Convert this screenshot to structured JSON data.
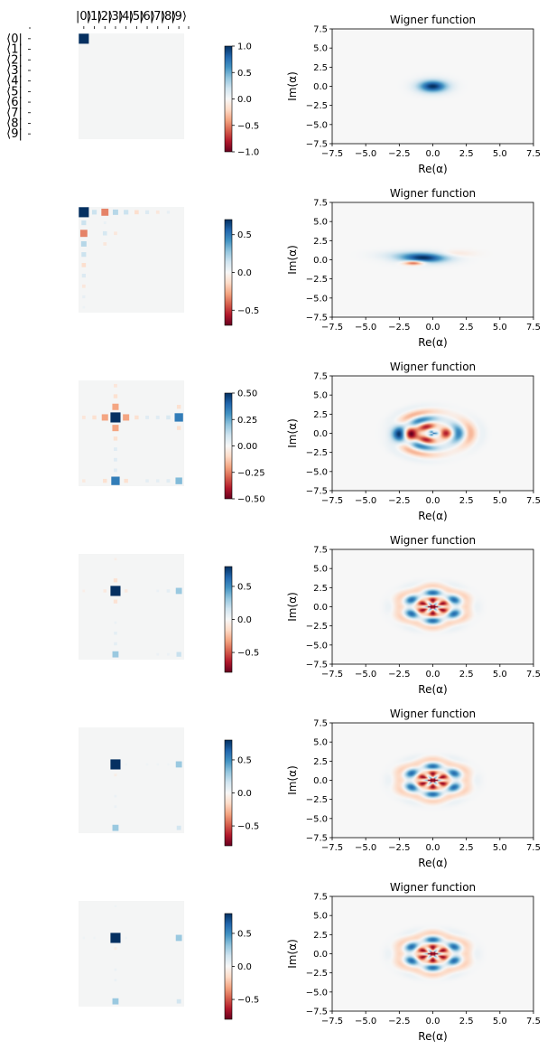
{
  "colors": {
    "cmap": [
      "#67001f",
      "#b2182b",
      "#d6604d",
      "#f4a582",
      "#fddbc7",
      "#f7f7f7",
      "#d1e5f0",
      "#92c5de",
      "#4393c3",
      "#2166ac",
      "#053061"
    ],
    "background": "#ffffff",
    "axis": "#000000"
  },
  "matrix_labels": {
    "kets": [
      "|0⟩",
      "|1⟩",
      "|2⟩",
      "|3⟩",
      "|4⟩",
      "|5⟩",
      "|6⟩",
      "|7⟩",
      "|8⟩",
      "|9⟩"
    ],
    "bras": [
      "⟨0|",
      "⟨1|",
      "⟨2|",
      "⟨3|",
      "⟨4|",
      "⟨5|",
      "⟨6|",
      "⟨7|",
      "⟨8|",
      "⟨9|"
    ]
  },
  "chart_data": [
    {
      "type": "hinton",
      "row": 0,
      "size": 10,
      "entries": [
        [
          0,
          0,
          1.0
        ]
      ],
      "colorbar": {
        "vmin": -1.0,
        "vmax": 1.0,
        "ticks": [
          1.0,
          0.5,
          0.0,
          -0.5,
          -1.0
        ],
        "tick_labels": [
          "1.0",
          "0.5",
          "0.0",
          "−0.5",
          "−1.0"
        ]
      }
    },
    {
      "type": "heatmap",
      "row": 0,
      "title": "Wigner function",
      "xlabel": "Re(α)",
      "ylabel": "Im(α)",
      "xlim": [
        -7.5,
        7.5
      ],
      "ylim": [
        -7.5,
        7.5
      ],
      "ticks": [
        7.5,
        5.0,
        2.5,
        0.0,
        -2.5,
        -5.0,
        -7.5
      ],
      "tick_labels": [
        "7.5",
        "5.0",
        "2.5",
        "0.0",
        "−2.5",
        "−5.0",
        "−7.5"
      ],
      "pattern": "coherent"
    },
    {
      "type": "hinton",
      "row": 1,
      "size": 10,
      "entries": [
        [
          0,
          0,
          0.7
        ],
        [
          0,
          1,
          0.15
        ],
        [
          0,
          2,
          -0.35
        ],
        [
          0,
          3,
          0.2
        ],
        [
          0,
          4,
          0.15
        ],
        [
          0,
          5,
          -0.12
        ],
        [
          0,
          6,
          0.1
        ],
        [
          0,
          7,
          -0.08
        ],
        [
          0,
          8,
          0.06
        ],
        [
          1,
          0,
          0.15
        ],
        [
          1,
          2,
          0.05
        ],
        [
          2,
          0,
          -0.35
        ],
        [
          2,
          2,
          0.12
        ],
        [
          2,
          3,
          -0.08
        ],
        [
          3,
          0,
          0.2
        ],
        [
          3,
          2,
          -0.08
        ],
        [
          4,
          0,
          0.15
        ],
        [
          5,
          0,
          -0.12
        ],
        [
          6,
          0,
          0.1
        ],
        [
          7,
          0,
          -0.08
        ],
        [
          8,
          0,
          0.06
        ],
        [
          9,
          0,
          0.04
        ]
      ],
      "colorbar": {
        "vmin": -0.7,
        "vmax": 0.7,
        "ticks": [
          0.5,
          0.0,
          -0.5
        ],
        "tick_labels": [
          "0.5",
          "0.0",
          "−0.5"
        ]
      }
    },
    {
      "type": "heatmap",
      "row": 1,
      "title": "Wigner function",
      "xlabel": "Re(α)",
      "ylabel": "Im(α)",
      "xlim": [
        -7.5,
        7.5
      ],
      "ylim": [
        -7.5,
        7.5
      ],
      "ticks": [
        7.5,
        5.0,
        2.5,
        0.0,
        -2.5,
        -5.0,
        -7.5
      ],
      "tick_labels": [
        "7.5",
        "5.0",
        "2.5",
        "0.0",
        "−2.5",
        "−5.0",
        "−7.5"
      ],
      "pattern": "squeezed"
    },
    {
      "type": "hinton",
      "row": 2,
      "size": 10,
      "entries": [
        [
          3,
          3,
          0.5
        ],
        [
          3,
          9,
          0.35
        ],
        [
          9,
          3,
          0.35
        ],
        [
          9,
          9,
          0.22
        ],
        [
          2,
          3,
          -0.2
        ],
        [
          4,
          3,
          -0.2
        ],
        [
          3,
          2,
          -0.2
        ],
        [
          3,
          4,
          -0.2
        ],
        [
          1,
          3,
          -0.08
        ],
        [
          5,
          3,
          -0.08
        ],
        [
          3,
          1,
          -0.08
        ],
        [
          3,
          5,
          -0.08
        ],
        [
          3,
          0,
          -0.06
        ],
        [
          0,
          3,
          -0.06
        ],
        [
          3,
          6,
          0.06
        ],
        [
          6,
          3,
          0.06
        ],
        [
          3,
          7,
          0.06
        ],
        [
          3,
          8,
          0.08
        ],
        [
          2,
          9,
          -0.08
        ],
        [
          4,
          9,
          -0.08
        ],
        [
          9,
          2,
          -0.08
        ],
        [
          9,
          4,
          -0.08
        ],
        [
          9,
          0,
          -0.05
        ],
        [
          9,
          6,
          0.05
        ],
        [
          9,
          7,
          0.05
        ],
        [
          9,
          8,
          0.06
        ],
        [
          7,
          3,
          0.06
        ],
        [
          8,
          3,
          0.06
        ]
      ],
      "colorbar": {
        "vmin": -0.5,
        "vmax": 0.5,
        "ticks": [
          0.5,
          0.25,
          0.0,
          -0.25,
          -0.5
        ],
        "tick_labels": [
          "0.50",
          "0.25",
          "0.00",
          "−0.25",
          "−0.50"
        ]
      }
    },
    {
      "type": "heatmap",
      "row": 2,
      "title": "Wigner function",
      "xlabel": "Re(α)",
      "ylabel": "Im(α)",
      "xlim": [
        -7.5,
        7.5
      ],
      "ylim": [
        -7.5,
        7.5
      ],
      "ticks": [
        7.5,
        5.0,
        2.5,
        0.0,
        -2.5,
        -5.0,
        -7.5
      ],
      "tick_labels": [
        "7.5",
        "5.0",
        "2.5",
        "0.0",
        "−2.5",
        "−5.0",
        "−7.5"
      ],
      "pattern": "mixed"
    },
    {
      "type": "hinton",
      "row": 3,
      "size": 10,
      "entries": [
        [
          3,
          3,
          0.8
        ],
        [
          3,
          9,
          0.3
        ],
        [
          9,
          3,
          0.3
        ],
        [
          9,
          9,
          0.18
        ],
        [
          2,
          3,
          -0.12
        ],
        [
          4,
          3,
          -0.12
        ],
        [
          3,
          2,
          -0.08
        ],
        [
          3,
          4,
          -0.08
        ],
        [
          3,
          0,
          -0.05
        ],
        [
          0,
          3,
          -0.05
        ],
        [
          3,
          7,
          0.05
        ],
        [
          3,
          8,
          0.08
        ],
        [
          7,
          3,
          0.08
        ],
        [
          8,
          3,
          0.08
        ],
        [
          6,
          3,
          0.05
        ],
        [
          9,
          7,
          0.05
        ],
        [
          9,
          8,
          0.05
        ]
      ],
      "colorbar": {
        "vmin": -0.8,
        "vmax": 0.8,
        "ticks": [
          0.5,
          0.0,
          -0.5
        ],
        "tick_labels": [
          "0.5",
          "0.0",
          "−0.5"
        ]
      }
    },
    {
      "type": "heatmap",
      "row": 3,
      "title": "Wigner function",
      "xlabel": "Re(α)",
      "ylabel": "Im(α)",
      "xlim": [
        -7.5,
        7.5
      ],
      "ylim": [
        -7.5,
        7.5
      ],
      "ticks": [
        7.5,
        5.0,
        2.5,
        0.0,
        -2.5,
        -5.0,
        -7.5
      ],
      "tick_labels": [
        "7.5",
        "5.0",
        "2.5",
        "0.0",
        "−2.5",
        "−5.0",
        "−7.5"
      ],
      "pattern": "cat6"
    },
    {
      "type": "hinton",
      "row": 4,
      "size": 10,
      "entries": [
        [
          3,
          3,
          0.85
        ],
        [
          3,
          9,
          0.3
        ],
        [
          9,
          3,
          0.3
        ],
        [
          9,
          9,
          0.15
        ],
        [
          4,
          3,
          -0.06
        ],
        [
          3,
          4,
          0.04
        ],
        [
          3,
          6,
          0.04
        ],
        [
          3,
          7,
          0.04
        ],
        [
          3,
          8,
          0.04
        ],
        [
          6,
          3,
          0.05
        ],
        [
          7,
          3,
          0.05
        ]
      ],
      "colorbar": {
        "vmin": -0.8,
        "vmax": 0.8,
        "ticks": [
          0.5,
          0.0,
          -0.5
        ],
        "tick_labels": [
          "0.5",
          "0.0",
          "−0.5"
        ]
      }
    },
    {
      "type": "heatmap",
      "row": 4,
      "title": "Wigner function",
      "xlabel": "Re(α)",
      "ylabel": "Im(α)",
      "xlim": [
        -7.5,
        7.5
      ],
      "ylim": [
        -7.5,
        7.5
      ],
      "ticks": [
        7.5,
        5.0,
        2.5,
        0.0,
        -2.5,
        -5.0,
        -7.5
      ],
      "tick_labels": [
        "7.5",
        "5.0",
        "2.5",
        "0.0",
        "−2.5",
        "−5.0",
        "−7.5"
      ],
      "pattern": "cat6"
    },
    {
      "type": "hinton",
      "row": 5,
      "size": 10,
      "entries": [
        [
          3,
          3,
          0.85
        ],
        [
          3,
          9,
          0.3
        ],
        [
          9,
          3,
          0.3
        ],
        [
          9,
          9,
          0.15
        ],
        [
          4,
          3,
          -0.06
        ],
        [
          0,
          3,
          0.04
        ],
        [
          3,
          0,
          0.04
        ],
        [
          3,
          1,
          0.04
        ],
        [
          3,
          4,
          0.04
        ],
        [
          6,
          3,
          0.05
        ],
        [
          7,
          3,
          0.05
        ]
      ],
      "colorbar": {
        "vmin": -0.8,
        "vmax": 0.8,
        "ticks": [
          0.5,
          0.0,
          -0.5
        ],
        "tick_labels": [
          "0.5",
          "0.0",
          "−0.5"
        ]
      }
    },
    {
      "type": "heatmap",
      "row": 5,
      "title": "Wigner function",
      "xlabel": "Re(α)",
      "ylabel": "Im(α)",
      "xlim": [
        -7.5,
        7.5
      ],
      "ylim": [
        -7.5,
        7.5
      ],
      "ticks": [
        7.5,
        5.0,
        2.5,
        0.0,
        -2.5,
        -5.0,
        -7.5
      ],
      "tick_labels": [
        "7.5",
        "5.0",
        "2.5",
        "0.0",
        "−2.5",
        "−5.0",
        "−7.5"
      ],
      "pattern": "cat6"
    }
  ]
}
